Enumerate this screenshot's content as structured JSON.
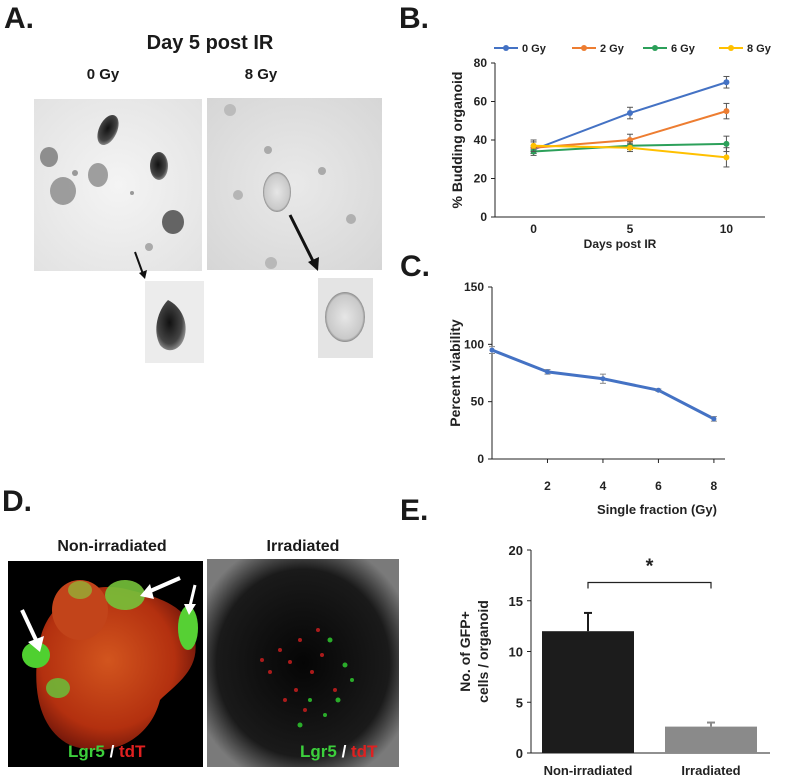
{
  "panels": {
    "a": {
      "letter": "A.",
      "title": "Day 5 post IR",
      "col_labels": [
        "0 Gy",
        "8 Gy"
      ]
    },
    "b": {
      "letter": "B."
    },
    "c": {
      "letter": "C."
    },
    "d": {
      "letter": "D.",
      "col_labels": [
        "Non-irradiated",
        "Irradiated"
      ],
      "stain_green": "Lgr5",
      "stain_sep": " / ",
      "stain_red": "tdT",
      "colors": {
        "green": "#3ccf3c",
        "red": "#e02020"
      }
    },
    "e": {
      "letter": "E."
    }
  },
  "chart_data": [
    {
      "id": "B",
      "type": "line",
      "xlabel": "Days post IR",
      "ylabel": "% Budding organoid",
      "x": [
        0,
        5,
        10
      ],
      "xticks": [
        0,
        5,
        10
      ],
      "ylim": [
        0,
        80
      ],
      "yticks": [
        0,
        20,
        40,
        60,
        80
      ],
      "legend_position": "top",
      "series": [
        {
          "name": "0 Gy",
          "color": "#4472c4",
          "values": [
            35,
            54,
            70
          ],
          "errors": [
            2,
            3,
            3
          ]
        },
        {
          "name": "2 Gy",
          "color": "#ed7d31",
          "values": [
            36,
            40,
            55
          ],
          "errors": [
            3,
            3,
            4
          ]
        },
        {
          "name": "6 Gy",
          "color": "#2ca05a",
          "values": [
            34,
            37,
            38
          ],
          "errors": [
            2,
            2,
            4
          ]
        },
        {
          "name": "8 Gy",
          "color": "#ffc000",
          "values": [
            37,
            36,
            31
          ],
          "errors": [
            3,
            2,
            5
          ]
        }
      ]
    },
    {
      "id": "C",
      "type": "line",
      "xlabel": "Single fraction (Gy)",
      "ylabel": "Percent viability",
      "x": [
        0,
        2,
        4,
        6,
        8
      ],
      "xticks": [
        2,
        4,
        6,
        8
      ],
      "ylim": [
        0,
        150
      ],
      "yticks": [
        0,
        50,
        100,
        150
      ],
      "series": [
        {
          "name": "",
          "color": "#4472c4",
          "values": [
            95,
            76,
            70,
            60,
            35
          ],
          "errors": [
            3,
            2,
            4,
            1,
            2
          ]
        }
      ]
    },
    {
      "id": "E",
      "type": "bar",
      "ylabel_lines": [
        "No. of GFP+",
        "cells / organoid"
      ],
      "categories": [
        "Non-irradiated",
        "Irradiated"
      ],
      "values": [
        12,
        2.6
      ],
      "errors": [
        1.8,
        0.4
      ],
      "bar_colors": [
        "#1c1c1c",
        "#8a8a8a"
      ],
      "ylim": [
        0,
        20
      ],
      "yticks": [
        0,
        5,
        10,
        15,
        20
      ],
      "annotation": "*"
    }
  ]
}
